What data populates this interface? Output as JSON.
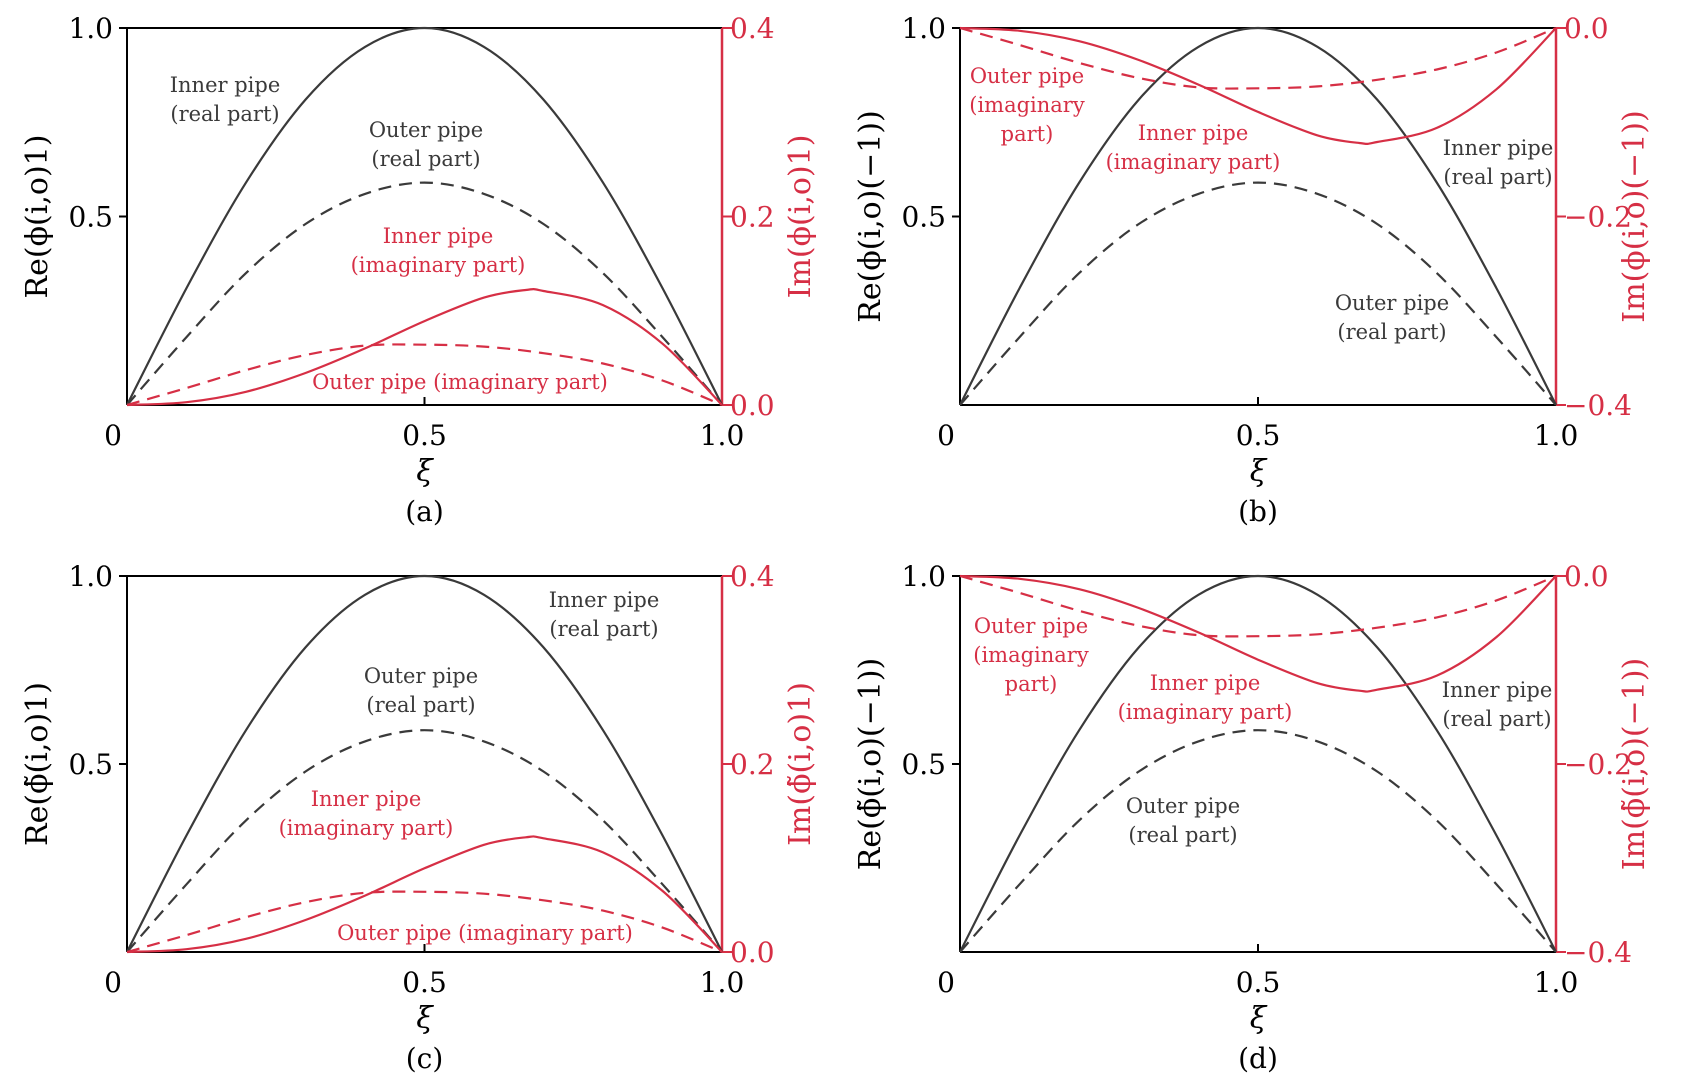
{
  "colors": {
    "black": "#3a3a3a",
    "red": "#d62f45"
  },
  "chart_data": [
    {
      "type": "line",
      "panel_label": "(a)",
      "xlabel": "ξ",
      "ylabel": "Re(ϕ(i,o)1)",
      "ylabel_right": "Im(ϕ(i,o)1)",
      "xlim": [
        0,
        1
      ],
      "ylim": [
        0,
        1
      ],
      "ylim_right": [
        0,
        0.4
      ],
      "xticks": [
        "0",
        "0.5",
        "1.0"
      ],
      "yticks": [
        "0.5",
        "1.0"
      ],
      "yticks_right": [
        "0.0",
        "0.2",
        "0.4"
      ],
      "series": [
        {
          "axis": "left",
          "color": "#3a3a3a",
          "style": "solid",
          "x": [
            0,
            0.1,
            0.2,
            0.3,
            0.4,
            0.5,
            0.6,
            0.7,
            0.8,
            0.9,
            1.0
          ],
          "y": [
            0,
            0.31,
            0.59,
            0.81,
            0.95,
            1.0,
            0.95,
            0.81,
            0.59,
            0.31,
            0
          ]
        },
        {
          "axis": "left",
          "color": "#3a3a3a",
          "style": "dashed",
          "x": [
            0,
            0.1,
            0.2,
            0.3,
            0.4,
            0.5,
            0.6,
            0.7,
            0.8,
            0.9,
            1.0
          ],
          "y": [
            0,
            0.18,
            0.35,
            0.48,
            0.56,
            0.59,
            0.56,
            0.48,
            0.35,
            0.18,
            0
          ]
        },
        {
          "axis": "right",
          "color": "#d62f45",
          "style": "solid",
          "x": [
            0,
            0.1,
            0.2,
            0.3,
            0.4,
            0.5,
            0.6,
            0.67,
            0.7,
            0.8,
            0.9,
            1.0
          ],
          "y": [
            0,
            0.003,
            0.014,
            0.034,
            0.06,
            0.089,
            0.114,
            0.122,
            0.121,
            0.106,
            0.065,
            0
          ]
        },
        {
          "axis": "right",
          "color": "#d62f45",
          "style": "dashed",
          "x": [
            0,
            0.1,
            0.2,
            0.3,
            0.4,
            0.5,
            0.6,
            0.7,
            0.8,
            0.9,
            1.0
          ],
          "y": [
            0,
            0.018,
            0.037,
            0.053,
            0.063,
            0.064,
            0.062,
            0.055,
            0.044,
            0.026,
            0
          ]
        }
      ],
      "annotations": [
        {
          "lines": [
            "Inner pipe",
            "(real part)"
          ],
          "color": "#3a3a3a"
        },
        {
          "lines": [
            "Outer pipe",
            "(real part)"
          ],
          "color": "#3a3a3a"
        },
        {
          "lines": [
            "Inner pipe",
            "(imaginary part)"
          ],
          "color": "#d62f45"
        },
        {
          "lines": [
            "Outer pipe (imaginary part)"
          ],
          "color": "#d62f45"
        }
      ]
    },
    {
      "type": "line",
      "panel_label": "(b)",
      "xlabel": "ξ",
      "ylabel": "Re(ϕ(i,o)(−1))",
      "ylabel_right": "Im(ϕ(i,o)(−1))",
      "xlim": [
        0,
        1
      ],
      "ylim": [
        0,
        1
      ],
      "ylim_right": [
        -0.4,
        0
      ],
      "xticks": [
        "0",
        "0.5",
        "1.0"
      ],
      "yticks": [
        "0.5",
        "1.0"
      ],
      "yticks_right": [
        "−0.4",
        "−0.2",
        "0.0"
      ],
      "series": [
        {
          "axis": "left",
          "color": "#3a3a3a",
          "style": "solid",
          "x": [
            0,
            0.1,
            0.2,
            0.3,
            0.4,
            0.5,
            0.6,
            0.7,
            0.8,
            0.9,
            1.0
          ],
          "y": [
            0,
            0.31,
            0.59,
            0.81,
            0.95,
            1.0,
            0.95,
            0.81,
            0.59,
            0.31,
            0
          ]
        },
        {
          "axis": "left",
          "color": "#3a3a3a",
          "style": "dashed",
          "x": [
            0,
            0.1,
            0.2,
            0.3,
            0.4,
            0.5,
            0.6,
            0.7,
            0.8,
            0.9,
            1.0
          ],
          "y": [
            0,
            0.18,
            0.35,
            0.48,
            0.56,
            0.59,
            0.56,
            0.48,
            0.35,
            0.18,
            0
          ]
        },
        {
          "axis": "right",
          "color": "#d62f45",
          "style": "solid",
          "x": [
            0,
            0.1,
            0.2,
            0.3,
            0.4,
            0.5,
            0.6,
            0.67,
            0.7,
            0.8,
            0.9,
            1.0
          ],
          "y": [
            0,
            -0.003,
            -0.014,
            -0.034,
            -0.06,
            -0.089,
            -0.114,
            -0.122,
            -0.121,
            -0.106,
            -0.065,
            0
          ]
        },
        {
          "axis": "right",
          "color": "#d62f45",
          "style": "dashed",
          "x": [
            0,
            0.1,
            0.2,
            0.3,
            0.4,
            0.5,
            0.6,
            0.7,
            0.8,
            0.9,
            1.0
          ],
          "y": [
            0,
            -0.018,
            -0.037,
            -0.053,
            -0.063,
            -0.064,
            -0.062,
            -0.055,
            -0.044,
            -0.026,
            0
          ]
        }
      ],
      "annotations": [
        {
          "lines": [
            "Outer pipe",
            "(imaginary",
            "part)"
          ],
          "color": "#d62f45"
        },
        {
          "lines": [
            "Inner pipe",
            "(imaginary part)"
          ],
          "color": "#d62f45"
        },
        {
          "lines": [
            "Inner pipe",
            "(real part)"
          ],
          "color": "#3a3a3a"
        },
        {
          "lines": [
            "Outer pipe",
            "(real part)"
          ],
          "color": "#3a3a3a"
        }
      ]
    },
    {
      "type": "line",
      "panel_label": "(c)",
      "xlabel": "ξ",
      "ylabel": "Re(ϕ̃(i,o)1)",
      "ylabel_right": "Im(ϕ̃(i,o)1)",
      "xlim": [
        0,
        1
      ],
      "ylim": [
        0,
        1
      ],
      "ylim_right": [
        0,
        0.4
      ],
      "xticks": [
        "0",
        "0.5",
        "1.0"
      ],
      "yticks": [
        "0.5",
        "1.0"
      ],
      "yticks_right": [
        "0.0",
        "0.2",
        "0.4"
      ],
      "series": [
        {
          "axis": "left",
          "color": "#3a3a3a",
          "style": "solid",
          "x": [
            0,
            0.1,
            0.2,
            0.3,
            0.4,
            0.5,
            0.6,
            0.7,
            0.8,
            0.9,
            1.0
          ],
          "y": [
            0,
            0.31,
            0.59,
            0.81,
            0.95,
            1.0,
            0.95,
            0.81,
            0.59,
            0.31,
            0
          ]
        },
        {
          "axis": "left",
          "color": "#3a3a3a",
          "style": "dashed",
          "x": [
            0,
            0.1,
            0.2,
            0.3,
            0.4,
            0.5,
            0.6,
            0.7,
            0.8,
            0.9,
            1.0
          ],
          "y": [
            0,
            0.18,
            0.35,
            0.48,
            0.56,
            0.59,
            0.56,
            0.48,
            0.35,
            0.18,
            0
          ]
        },
        {
          "axis": "right",
          "color": "#d62f45",
          "style": "solid",
          "x": [
            0,
            0.1,
            0.2,
            0.3,
            0.4,
            0.5,
            0.6,
            0.67,
            0.7,
            0.8,
            0.9,
            1.0
          ],
          "y": [
            0,
            0.003,
            0.014,
            0.034,
            0.06,
            0.089,
            0.114,
            0.122,
            0.121,
            0.106,
            0.065,
            0
          ]
        },
        {
          "axis": "right",
          "color": "#d62f45",
          "style": "dashed",
          "x": [
            0,
            0.1,
            0.2,
            0.3,
            0.4,
            0.5,
            0.6,
            0.7,
            0.8,
            0.9,
            1.0
          ],
          "y": [
            0,
            0.018,
            0.037,
            0.053,
            0.063,
            0.064,
            0.062,
            0.055,
            0.044,
            0.026,
            0
          ]
        }
      ],
      "annotations": [
        {
          "lines": [
            "Inner pipe",
            "(real part)"
          ],
          "color": "#3a3a3a"
        },
        {
          "lines": [
            "Outer pipe",
            "(real part)"
          ],
          "color": "#3a3a3a"
        },
        {
          "lines": [
            "Inner pipe",
            "(imaginary part)"
          ],
          "color": "#d62f45"
        },
        {
          "lines": [
            "Outer pipe (imaginary part)"
          ],
          "color": "#d62f45"
        }
      ]
    },
    {
      "type": "line",
      "panel_label": "(d)",
      "xlabel": "ξ",
      "ylabel": "Re(ϕ̃(i,o)(−1))",
      "ylabel_right": "Im(ϕ̃(i,o)(−1))",
      "xlim": [
        0,
        1
      ],
      "ylim": [
        0,
        1
      ],
      "ylim_right": [
        -0.4,
        0
      ],
      "xticks": [
        "0",
        "0.5",
        "1.0"
      ],
      "yticks": [
        "0.5",
        "1.0"
      ],
      "yticks_right": [
        "−0.4",
        "−0.2",
        "0.0"
      ],
      "series": [
        {
          "axis": "left",
          "color": "#3a3a3a",
          "style": "solid",
          "x": [
            0,
            0.1,
            0.2,
            0.3,
            0.4,
            0.5,
            0.6,
            0.7,
            0.8,
            0.9,
            1.0
          ],
          "y": [
            0,
            0.31,
            0.59,
            0.81,
            0.95,
            1.0,
            0.95,
            0.81,
            0.59,
            0.31,
            0
          ]
        },
        {
          "axis": "left",
          "color": "#3a3a3a",
          "style": "dashed",
          "x": [
            0,
            0.1,
            0.2,
            0.3,
            0.4,
            0.5,
            0.6,
            0.7,
            0.8,
            0.9,
            1.0
          ],
          "y": [
            0,
            0.18,
            0.35,
            0.48,
            0.56,
            0.59,
            0.56,
            0.48,
            0.35,
            0.18,
            0
          ]
        },
        {
          "axis": "right",
          "color": "#d62f45",
          "style": "solid",
          "x": [
            0,
            0.1,
            0.2,
            0.3,
            0.4,
            0.5,
            0.6,
            0.67,
            0.7,
            0.8,
            0.9,
            1.0
          ],
          "y": [
            0,
            -0.003,
            -0.014,
            -0.034,
            -0.06,
            -0.089,
            -0.114,
            -0.122,
            -0.121,
            -0.106,
            -0.065,
            0
          ]
        },
        {
          "axis": "right",
          "color": "#d62f45",
          "style": "dashed",
          "x": [
            0,
            0.1,
            0.2,
            0.3,
            0.4,
            0.5,
            0.6,
            0.7,
            0.8,
            0.9,
            1.0
          ],
          "y": [
            0,
            -0.018,
            -0.037,
            -0.053,
            -0.063,
            -0.064,
            -0.062,
            -0.055,
            -0.044,
            -0.026,
            0
          ]
        }
      ],
      "annotations": [
        {
          "lines": [
            "Outer pipe",
            "(imaginary",
            "part)"
          ],
          "color": "#d62f45"
        },
        {
          "lines": [
            "Inner pipe",
            "(imaginary part)"
          ],
          "color": "#d62f45"
        },
        {
          "lines": [
            "Inner pipe",
            "(real part)"
          ],
          "color": "#3a3a3a"
        },
        {
          "lines": [
            "Outer pipe",
            "(real part)"
          ],
          "color": "#3a3a3a"
        }
      ]
    }
  ]
}
